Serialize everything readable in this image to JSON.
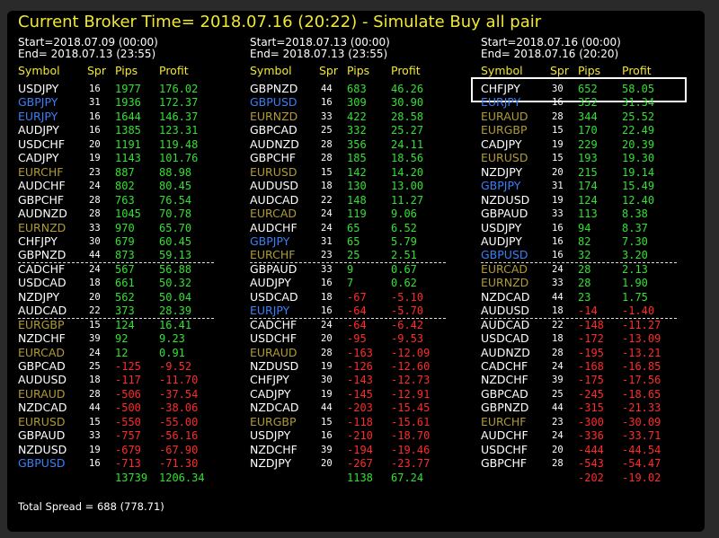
{
  "title": "Current Broker Time= 2018.07.16 (20:22) - Simulate Buy all pair",
  "headers": [
    "Symbol",
    "Spr",
    "Pips",
    "Profit"
  ],
  "footer": "Total Spread = 688 (778.71)",
  "columns": [
    {
      "start": "Start=2018.07.09 (00:00)",
      "end": "End= 2018.07.13 (23:55)",
      "total_pips": "13739",
      "total_profit": "1206.34",
      "rows": [
        {
          "symbol": "USDJPY",
          "spread": "16",
          "pips": "1977",
          "profit": "176.02",
          "color": "#ffffff"
        },
        {
          "symbol": "GBPJPY",
          "spread": "31",
          "pips": "1936",
          "profit": "172.37",
          "color": "#3b7ff5"
        },
        {
          "symbol": "EURJPY",
          "spread": "16",
          "pips": "1644",
          "profit": "146.37",
          "color": "#3b7ff5"
        },
        {
          "symbol": "AUDJPY",
          "spread": "16",
          "pips": "1385",
          "profit": "123.31",
          "color": "#ffffff"
        },
        {
          "symbol": "USDCHF",
          "spread": "20",
          "pips": "1191",
          "profit": "119.48",
          "color": "#ffffff"
        },
        {
          "symbol": "CADJPY",
          "spread": "19",
          "pips": "1143",
          "profit": "101.76",
          "color": "#ffffff"
        },
        {
          "symbol": "EURCHF",
          "spread": "23",
          "pips": "887",
          "profit": "88.98",
          "color": "#b09a34"
        },
        {
          "symbol": "AUDCHF",
          "spread": "24",
          "pips": "802",
          "profit": "80.45",
          "color": "#ffffff"
        },
        {
          "symbol": "GBPCHF",
          "spread": "28",
          "pips": "763",
          "profit": "76.54",
          "color": "#ffffff"
        },
        {
          "symbol": "AUDNZD",
          "spread": "28",
          "pips": "1045",
          "profit": "70.78",
          "color": "#ffffff"
        },
        {
          "symbol": "EURNZD",
          "spread": "33",
          "pips": "970",
          "profit": "65.70",
          "color": "#b09a34"
        },
        {
          "symbol": "CHFJPY",
          "spread": "30",
          "pips": "679",
          "profit": "60.45",
          "color": "#ffffff"
        },
        {
          "symbol": "GBPNZD",
          "spread": "44",
          "pips": "873",
          "profit": "59.13",
          "color": "#ffffff"
        },
        {
          "symbol": "CADCHF",
          "spread": "24",
          "pips": "567",
          "profit": "56.88",
          "color": "#ffffff"
        },
        {
          "symbol": "USDCAD",
          "spread": "18",
          "pips": "661",
          "profit": "50.32",
          "color": "#ffffff"
        },
        {
          "symbol": "NZDJPY",
          "spread": "20",
          "pips": "562",
          "profit": "50.04",
          "color": "#ffffff"
        },
        {
          "symbol": "AUDCAD",
          "spread": "22",
          "pips": "373",
          "profit": "28.39",
          "color": "#ffffff"
        },
        {
          "symbol": "EURGBP",
          "spread": "15",
          "pips": "124",
          "profit": "16.41",
          "color": "#b09a34"
        },
        {
          "symbol": "NZDCHF",
          "spread": "39",
          "pips": "92",
          "profit": "9.23",
          "color": "#ffffff"
        },
        {
          "symbol": "EURCAD",
          "spread": "24",
          "pips": "12",
          "profit": "0.91",
          "color": "#b09a34"
        },
        {
          "symbol": "GBPCAD",
          "spread": "25",
          "pips": "-125",
          "profit": "-9.52",
          "color": "#ffffff"
        },
        {
          "symbol": "AUDUSD",
          "spread": "18",
          "pips": "-117",
          "profit": "-11.70",
          "color": "#ffffff"
        },
        {
          "symbol": "EURAUD",
          "spread": "28",
          "pips": "-506",
          "profit": "-37.54",
          "color": "#b09a34"
        },
        {
          "symbol": "NZDCAD",
          "spread": "44",
          "pips": "-500",
          "profit": "-38.06",
          "color": "#ffffff"
        },
        {
          "symbol": "EURUSD",
          "spread": "15",
          "pips": "-550",
          "profit": "-55.00",
          "color": "#b09a34"
        },
        {
          "symbol": "GBPAUD",
          "spread": "33",
          "pips": "-757",
          "profit": "-56.16",
          "color": "#ffffff"
        },
        {
          "symbol": "NZDUSD",
          "spread": "19",
          "pips": "-679",
          "profit": "-67.90",
          "color": "#ffffff"
        },
        {
          "symbol": "GBPUSD",
          "spread": "16",
          "pips": "-713",
          "profit": "-71.30",
          "color": "#3b7ff5"
        }
      ]
    },
    {
      "start": "Start=2018.07.13 (00:00)",
      "end": "End= 2018.07.13 (23:55)",
      "total_pips": "1138",
      "total_profit": "67.24",
      "rows": [
        {
          "symbol": "GBPNZD",
          "spread": "44",
          "pips": "683",
          "profit": "46.26",
          "color": "#ffffff"
        },
        {
          "symbol": "GBPUSD",
          "spread": "16",
          "pips": "309",
          "profit": "30.90",
          "color": "#3b7ff5"
        },
        {
          "symbol": "EURNZD",
          "spread": "33",
          "pips": "422",
          "profit": "28.58",
          "color": "#b09a34"
        },
        {
          "symbol": "GBPCAD",
          "spread": "25",
          "pips": "332",
          "profit": "25.27",
          "color": "#ffffff"
        },
        {
          "symbol": "AUDNZD",
          "spread": "28",
          "pips": "356",
          "profit": "24.11",
          "color": "#ffffff"
        },
        {
          "symbol": "GBPCHF",
          "spread": "28",
          "pips": "185",
          "profit": "18.56",
          "color": "#ffffff"
        },
        {
          "symbol": "EURUSD",
          "spread": "15",
          "pips": "142",
          "profit": "14.20",
          "color": "#b09a34"
        },
        {
          "symbol": "AUDUSD",
          "spread": "18",
          "pips": "130",
          "profit": "13.00",
          "color": "#ffffff"
        },
        {
          "symbol": "AUDCAD",
          "spread": "22",
          "pips": "148",
          "profit": "11.27",
          "color": "#ffffff"
        },
        {
          "symbol": "EURCAD",
          "spread": "24",
          "pips": "119",
          "profit": "9.06",
          "color": "#b09a34"
        },
        {
          "symbol": "AUDCHF",
          "spread": "24",
          "pips": "65",
          "profit": "6.52",
          "color": "#ffffff"
        },
        {
          "symbol": "GBPJPY",
          "spread": "31",
          "pips": "65",
          "profit": "5.79",
          "color": "#3b7ff5"
        },
        {
          "symbol": "EURCHF",
          "spread": "23",
          "pips": "25",
          "profit": "2.51",
          "color": "#b09a34"
        },
        {
          "symbol": "GBPAUD",
          "spread": "33",
          "pips": "9",
          "profit": "0.67",
          "color": "#ffffff"
        },
        {
          "symbol": "AUDJPY",
          "spread": "16",
          "pips": "7",
          "profit": "0.62",
          "color": "#ffffff"
        },
        {
          "symbol": "USDCAD",
          "spread": "18",
          "pips": "-67",
          "profit": "-5.10",
          "color": "#ffffff"
        },
        {
          "symbol": "EURJPY",
          "spread": "16",
          "pips": "-64",
          "profit": "-5.70",
          "color": "#3b7ff5"
        },
        {
          "symbol": "CADCHF",
          "spread": "24",
          "pips": "-64",
          "profit": "-6.42",
          "color": "#ffffff"
        },
        {
          "symbol": "USDCHF",
          "spread": "20",
          "pips": "-95",
          "profit": "-9.53",
          "color": "#ffffff"
        },
        {
          "symbol": "EURAUD",
          "spread": "28",
          "pips": "-163",
          "profit": "-12.09",
          "color": "#b09a34"
        },
        {
          "symbol": "NZDUSD",
          "spread": "19",
          "pips": "-126",
          "profit": "-12.60",
          "color": "#ffffff"
        },
        {
          "symbol": "CHFJPY",
          "spread": "30",
          "pips": "-143",
          "profit": "-12.73",
          "color": "#ffffff"
        },
        {
          "symbol": "CADJPY",
          "spread": "19",
          "pips": "-145",
          "profit": "-12.91",
          "color": "#ffffff"
        },
        {
          "symbol": "NZDCAD",
          "spread": "44",
          "pips": "-203",
          "profit": "-15.45",
          "color": "#ffffff"
        },
        {
          "symbol": "EURGBP",
          "spread": "15",
          "pips": "-118",
          "profit": "-15.61",
          "color": "#b09a34"
        },
        {
          "symbol": "USDJPY",
          "spread": "16",
          "pips": "-210",
          "profit": "-18.70",
          "color": "#ffffff"
        },
        {
          "symbol": "NZDCHF",
          "spread": "39",
          "pips": "-194",
          "profit": "-19.46",
          "color": "#ffffff"
        },
        {
          "symbol": "NZDJPY",
          "spread": "20",
          "pips": "-267",
          "profit": "-23.77",
          "color": "#ffffff"
        }
      ]
    },
    {
      "start": "Start=2018.07.16 (00:00)",
      "end": "End= 2018.07.16 (20:20)",
      "total_pips": "-202",
      "total_profit": "-19.02",
      "rows": [
        {
          "symbol": "CHFJPY",
          "spread": "30",
          "pips": "652",
          "profit": "58.05",
          "color": "#ffffff"
        },
        {
          "symbol": "EURJPY",
          "spread": "16",
          "pips": "352",
          "profit": "31.34",
          "color": "#3b7ff5"
        },
        {
          "symbol": "EURAUD",
          "spread": "28",
          "pips": "344",
          "profit": "25.52",
          "color": "#b09a34"
        },
        {
          "symbol": "EURGBP",
          "spread": "15",
          "pips": "170",
          "profit": "22.49",
          "color": "#b09a34"
        },
        {
          "symbol": "CADJPY",
          "spread": "19",
          "pips": "229",
          "profit": "20.39",
          "color": "#ffffff"
        },
        {
          "symbol": "EURUSD",
          "spread": "15",
          "pips": "193",
          "profit": "19.30",
          "color": "#b09a34"
        },
        {
          "symbol": "NZDJPY",
          "spread": "20",
          "pips": "215",
          "profit": "19.14",
          "color": "#ffffff"
        },
        {
          "symbol": "GBPJPY",
          "spread": "31",
          "pips": "174",
          "profit": "15.49",
          "color": "#3b7ff5"
        },
        {
          "symbol": "NZDUSD",
          "spread": "19",
          "pips": "124",
          "profit": "12.40",
          "color": "#ffffff"
        },
        {
          "symbol": "GBPAUD",
          "spread": "33",
          "pips": "113",
          "profit": "8.38",
          "color": "#ffffff"
        },
        {
          "symbol": "USDJPY",
          "spread": "16",
          "pips": "94",
          "profit": "8.37",
          "color": "#ffffff"
        },
        {
          "symbol": "AUDJPY",
          "spread": "16",
          "pips": "82",
          "profit": "7.30",
          "color": "#ffffff"
        },
        {
          "symbol": "GBPUSD",
          "spread": "16",
          "pips": "32",
          "profit": "3.20",
          "color": "#3b7ff5"
        },
        {
          "symbol": "EURCAD",
          "spread": "24",
          "pips": "28",
          "profit": "2.13",
          "color": "#b09a34"
        },
        {
          "symbol": "EURNZD",
          "spread": "33",
          "pips": "28",
          "profit": "1.90",
          "color": "#b09a34"
        },
        {
          "symbol": "NZDCAD",
          "spread": "44",
          "pips": "23",
          "profit": "1.75",
          "color": "#ffffff"
        },
        {
          "symbol": "AUDUSD",
          "spread": "18",
          "pips": "-14",
          "profit": "-1.40",
          "color": "#ffffff"
        },
        {
          "symbol": "AUDCAD",
          "spread": "22",
          "pips": "-148",
          "profit": "-11.27",
          "color": "#ffffff"
        },
        {
          "symbol": "USDCAD",
          "spread": "18",
          "pips": "-172",
          "profit": "-13.09",
          "color": "#ffffff"
        },
        {
          "symbol": "AUDNZD",
          "spread": "28",
          "pips": "-195",
          "profit": "-13.21",
          "color": "#ffffff"
        },
        {
          "symbol": "CADCHF",
          "spread": "24",
          "pips": "-168",
          "profit": "-16.85",
          "color": "#ffffff"
        },
        {
          "symbol": "NZDCHF",
          "spread": "39",
          "pips": "-175",
          "profit": "-17.56",
          "color": "#ffffff"
        },
        {
          "symbol": "GBPCAD",
          "spread": "25",
          "pips": "-245",
          "profit": "-18.65",
          "color": "#ffffff"
        },
        {
          "symbol": "GBPNZD",
          "spread": "44",
          "pips": "-315",
          "profit": "-21.33",
          "color": "#ffffff"
        },
        {
          "symbol": "EURCHF",
          "spread": "23",
          "pips": "-300",
          "profit": "-30.09",
          "color": "#b09a34"
        },
        {
          "symbol": "AUDCHF",
          "spread": "24",
          "pips": "-336",
          "profit": "-33.71",
          "color": "#ffffff"
        },
        {
          "symbol": "USDCHF",
          "spread": "20",
          "pips": "-444",
          "profit": "-44.54",
          "color": "#ffffff"
        },
        {
          "symbol": "GBPCHF",
          "spread": "28",
          "pips": "-543",
          "profit": "-54.47",
          "color": "#ffffff"
        }
      ]
    }
  ]
}
